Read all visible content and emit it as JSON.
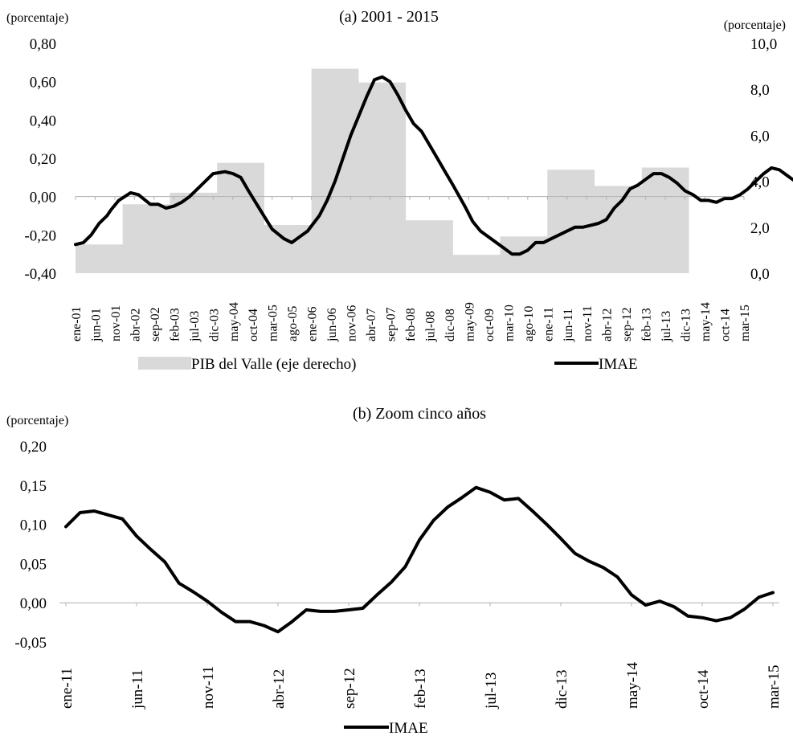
{
  "chart_data": [
    {
      "type": "line",
      "title": "(a) 2001 - 2015",
      "ylabel": "(porcentaje)",
      "y2label": "(porcentaje)",
      "ylim": [
        -0.4,
        0.8
      ],
      "y2lim": [
        0,
        10
      ],
      "yticks": [
        "-0,40",
        "-0,20",
        "0,00",
        "0,20",
        "0,40",
        "0,60",
        "0,80"
      ],
      "y2ticks": [
        "0,0",
        "2,0",
        "4,0",
        "6,0",
        "8,0",
        "10,0"
      ],
      "xticks": [
        "ene-01",
        "jun-01",
        "nov-01",
        "abr-02",
        "sep-02",
        "feb-03",
        "jul-03",
        "dic-03",
        "may-04",
        "oct-04",
        "mar-05",
        "ago-05",
        "ene-06",
        "jun-06",
        "nov-06",
        "abr-07",
        "sep-07",
        "feb-08",
        "jul-08",
        "dic-08",
        "may-09",
        "oct-09",
        "mar-10",
        "ago-10",
        "ene-11",
        "jun-11",
        "nov-11",
        "abr-12",
        "sep-12",
        "feb-13",
        "jul-13",
        "dic-13",
        "may-14",
        "oct-14",
        "mar-15"
      ],
      "x_start": "ene-01",
      "x_end": "mar-15",
      "grid": false,
      "legend": "bottom",
      "series": [
        {
          "name": "PIB del Valle (eje derecho)",
          "kind": "area",
          "axis": "right",
          "color": "#d9d9d9",
          "years": [
            2001,
            2002,
            2003,
            2004,
            2005,
            2006,
            2007,
            2008,
            2009,
            2010,
            2011,
            2012,
            2013
          ],
          "values": [
            1.25,
            3.0,
            3.5,
            4.8,
            2.1,
            8.9,
            8.3,
            2.3,
            0.8,
            1.6,
            4.5,
            3.8,
            4.6
          ]
        },
        {
          "name": "IMAE",
          "kind": "line",
          "axis": "left",
          "color": "#000000",
          "points": [
            [
              0,
              -0.25
            ],
            [
              2,
              -0.24
            ],
            [
              4,
              -0.2
            ],
            [
              6,
              -0.14
            ],
            [
              8,
              -0.1
            ],
            [
              9,
              -0.07
            ],
            [
              11,
              -0.02
            ],
            [
              14,
              0.02
            ],
            [
              16,
              0.01
            ],
            [
              19,
              -0.04
            ],
            [
              21,
              -0.04
            ],
            [
              23,
              -0.06
            ],
            [
              25,
              -0.05
            ],
            [
              27,
              -0.03
            ],
            [
              29,
              0.0
            ],
            [
              32,
              0.06
            ],
            [
              35,
              0.12
            ],
            [
              38,
              0.13
            ],
            [
              40,
              0.12
            ],
            [
              42,
              0.1
            ],
            [
              44,
              0.03
            ],
            [
              47,
              -0.07
            ],
            [
              50,
              -0.17
            ],
            [
              53,
              -0.22
            ],
            [
              55,
              -0.24
            ],
            [
              57,
              -0.21
            ],
            [
              59,
              -0.18
            ],
            [
              62,
              -0.1
            ],
            [
              64,
              -0.02
            ],
            [
              66,
              0.08
            ],
            [
              68,
              0.2
            ],
            [
              70,
              0.32
            ],
            [
              72,
              0.42
            ],
            [
              74,
              0.52
            ],
            [
              76,
              0.61
            ],
            [
              78,
              0.625
            ],
            [
              80,
              0.6
            ],
            [
              82,
              0.53
            ],
            [
              84,
              0.45
            ],
            [
              86,
              0.38
            ],
            [
              88,
              0.34
            ],
            [
              90,
              0.27
            ],
            [
              92,
              0.2
            ],
            [
              94,
              0.13
            ],
            [
              96,
              0.06
            ],
            [
              99,
              -0.05
            ],
            [
              101,
              -0.13
            ],
            [
              103,
              -0.18
            ],
            [
              105,
              -0.21
            ],
            [
              107,
              -0.24
            ],
            [
              109,
              -0.27
            ],
            [
              111,
              -0.3
            ],
            [
              113,
              -0.3
            ],
            [
              115,
              -0.28
            ],
            [
              117,
              -0.24
            ],
            [
              119,
              -0.24
            ],
            [
              121,
              -0.22
            ],
            [
              123,
              -0.2
            ],
            [
              125,
              -0.18
            ],
            [
              127,
              -0.16
            ],
            [
              129,
              -0.16
            ],
            [
              131,
              -0.15
            ],
            [
              133,
              -0.14
            ],
            [
              135,
              -0.12
            ],
            [
              137,
              -0.06
            ],
            [
              139,
              -0.02
            ],
            [
              141,
              0.04
            ],
            [
              143,
              0.06
            ],
            [
              145,
              0.09
            ],
            [
              147,
              0.12
            ],
            [
              149,
              0.12
            ],
            [
              151,
              0.1
            ],
            [
              153,
              0.07
            ],
            [
              155,
              0.03
            ],
            [
              157,
              0.01
            ],
            [
              159,
              -0.02
            ],
            [
              161,
              -0.02
            ],
            [
              163,
              -0.03
            ],
            [
              165,
              -0.01
            ],
            [
              167,
              -0.01
            ],
            [
              169,
              0.01
            ],
            [
              171,
              0.04
            ],
            [
              173,
              0.08
            ],
            [
              175,
              0.12
            ],
            [
              177,
              0.15
            ],
            [
              179,
              0.14
            ],
            [
              181,
              0.11
            ],
            [
              183,
              0.08
            ],
            [
              185,
              0.05
            ],
            [
              187,
              0.02
            ],
            [
              189,
              -0.01
            ],
            [
              191,
              -0.02
            ],
            [
              193,
              -0.02
            ],
            [
              195,
              -0.01
            ],
            [
              197,
              0.01
            ],
            [
              199,
              0.01
            ]
          ]
        }
      ]
    },
    {
      "type": "line",
      "title": "(b) Zoom cinco años",
      "ylabel": "(porcentaje)",
      "ylim": [
        -0.05,
        0.2
      ],
      "yticks": [
        "-0,05",
        "0,00",
        "0,05",
        "0,10",
        "0,15",
        "0,20"
      ],
      "xticks": [
        "ene-11",
        "jun-11",
        "nov-11",
        "abr-12",
        "sep-12",
        "feb-13",
        "jul-13",
        "dic-13",
        "may-14",
        "oct-14",
        "mar-15"
      ],
      "x_start": "ene-11",
      "x_end": "mar-15",
      "grid": false,
      "legend": "bottom",
      "series": [
        {
          "name": "IMAE",
          "color": "#000000",
          "values": [
            0.097,
            0.115,
            0.117,
            0.112,
            0.107,
            0.085,
            0.068,
            0.052,
            0.025,
            0.014,
            0.002,
            -0.012,
            -0.024,
            -0.024,
            -0.029,
            -0.037,
            -0.024,
            -0.009,
            -0.011,
            -0.011,
            -0.009,
            -0.007,
            0.01,
            0.026,
            0.046,
            0.08,
            0.105,
            0.122,
            0.134,
            0.147,
            0.141,
            0.131,
            0.133,
            0.117,
            0.1,
            0.082,
            0.063,
            0.053,
            0.045,
            0.033,
            0.01,
            -0.003,
            0.002,
            -0.005,
            -0.017,
            -0.019,
            -0.023,
            -0.019,
            -0.008,
            0.007,
            0.013
          ]
        }
      ]
    }
  ]
}
